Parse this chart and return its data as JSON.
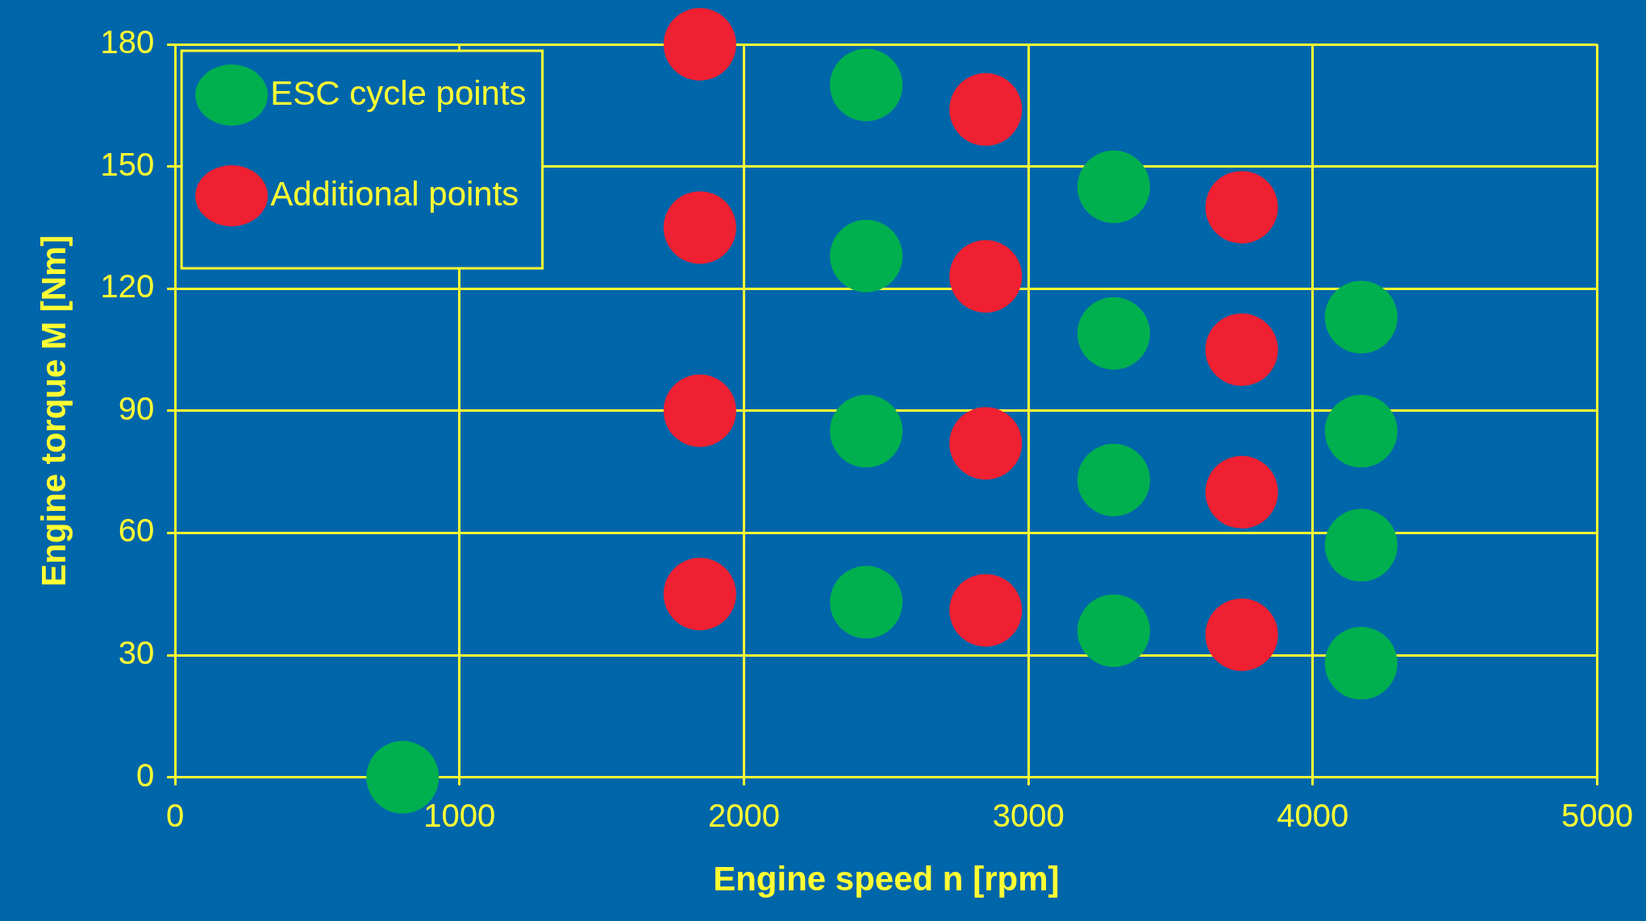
{
  "chart_data": {
    "type": "scatter",
    "xlabel": "Engine speed n [rpm]",
    "ylabel": "Engine torque M [Nm]",
    "xlim": [
      0,
      5000
    ],
    "xticks": [
      0,
      1000,
      2000,
      3000,
      4000,
      5000
    ],
    "ylim": [
      0,
      180
    ],
    "yticks": [
      0,
      30,
      60,
      90,
      120,
      150,
      180
    ],
    "grid": true,
    "legend": "top left",
    "marker": "circle",
    "series": [
      {
        "name": "ESC cycle points",
        "color": "#00b04f",
        "x": [
          800,
          2430,
          2430,
          2430,
          2430,
          3300,
          3300,
          3300,
          3300,
          4170,
          4170,
          4170,
          4170
        ],
        "values": [
          0,
          170,
          128,
          85,
          43,
          145,
          109,
          73,
          36,
          113,
          85,
          57,
          28
        ]
      },
      {
        "name": "Additional points",
        "color": "#ee2031",
        "x": [
          1845,
          1845,
          1845,
          1845,
          2850,
          2850,
          2850,
          2850,
          3750,
          3750,
          3750,
          3750
        ],
        "values": [
          180,
          135,
          90,
          45,
          164,
          123,
          82,
          41,
          140,
          105,
          70,
          35
        ]
      }
    ]
  }
}
